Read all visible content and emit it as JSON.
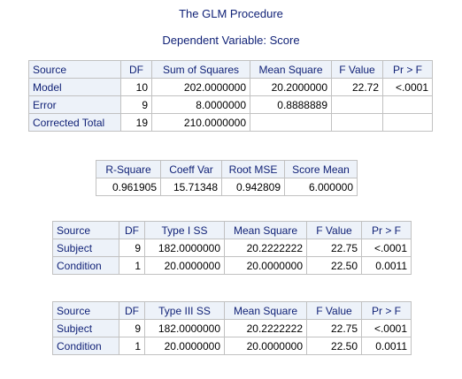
{
  "proc_title": "The GLM Procedure",
  "dependent_title": "Dependent Variable: Score",
  "anova": {
    "headers": [
      "Source",
      "DF",
      "Sum of Squares",
      "Mean Square",
      "F Value",
      "Pr > F"
    ],
    "rows": [
      {
        "source": "Model",
        "df": "10",
        "ss": "202.0000000",
        "ms": "20.2000000",
        "f": "22.72",
        "p": "<.0001"
      },
      {
        "source": "Error",
        "df": "9",
        "ss": "8.0000000",
        "ms": "0.8888889",
        "f": "",
        "p": ""
      },
      {
        "source": "Corrected Total",
        "df": "19",
        "ss": "210.0000000",
        "ms": "",
        "f": "",
        "p": ""
      }
    ]
  },
  "fit": {
    "headers": [
      "R-Square",
      "Coeff Var",
      "Root MSE",
      "Score Mean"
    ],
    "values": [
      "0.961905",
      "15.71348",
      "0.942809",
      "6.000000"
    ]
  },
  "type1": {
    "headers": [
      "Source",
      "DF",
      "Type I SS",
      "Mean Square",
      "F Value",
      "Pr > F"
    ],
    "rows": [
      {
        "source": "Subject",
        "df": "9",
        "ss": "182.0000000",
        "ms": "20.2222222",
        "f": "22.75",
        "p": "<.0001"
      },
      {
        "source": "Condition",
        "df": "1",
        "ss": "20.0000000",
        "ms": "20.0000000",
        "f": "22.50",
        "p": "0.0011"
      }
    ]
  },
  "type3": {
    "headers": [
      "Source",
      "DF",
      "Type III SS",
      "Mean Square",
      "F Value",
      "Pr > F"
    ],
    "rows": [
      {
        "source": "Subject",
        "df": "9",
        "ss": "182.0000000",
        "ms": "20.2222222",
        "f": "22.75",
        "p": "<.0001"
      },
      {
        "source": "Condition",
        "df": "1",
        "ss": "20.0000000",
        "ms": "20.0000000",
        "f": "22.50",
        "p": "0.0011"
      }
    ]
  },
  "colors": {
    "header_text": "#112277",
    "header_bg": "#edf2f9",
    "border": "#c1c1c1"
  }
}
